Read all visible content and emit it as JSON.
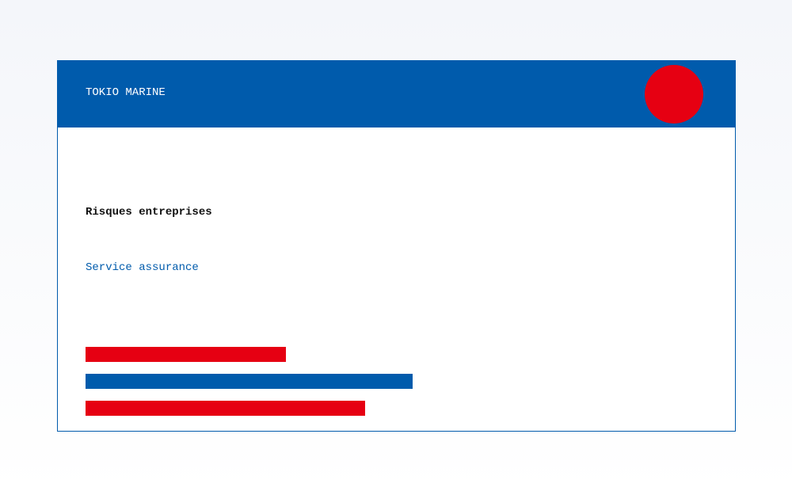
{
  "header": {
    "title": "TOKIO MARINE"
  },
  "content": {
    "heading": "Risques entreprises",
    "subheading": "Service assurance"
  }
}
